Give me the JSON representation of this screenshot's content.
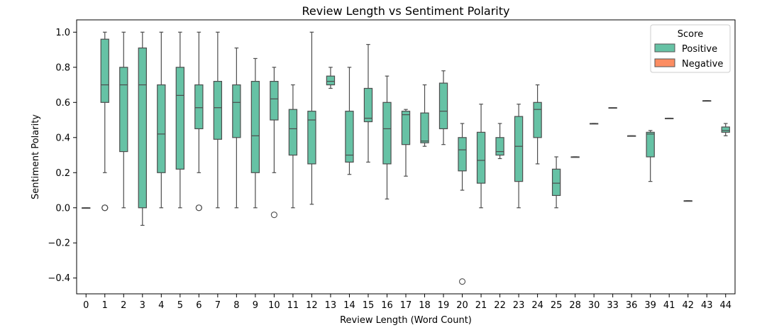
{
  "chart_data": {
    "type": "box",
    "title": "Review Length vs Sentiment Polarity",
    "xlabel": "Review Length (Word Count)",
    "ylabel": "Sentiment Polarity",
    "ylim": [
      -0.49,
      1.07
    ],
    "yticks": [
      "−0.4",
      "−0.2",
      "0.0",
      "0.2",
      "0.4",
      "0.6",
      "0.8",
      "1.0"
    ],
    "ytick_values": [
      -0.4,
      -0.2,
      0.0,
      0.2,
      0.4,
      0.6,
      0.8,
      1.0
    ],
    "grid": false,
    "legend": {
      "title": "Score",
      "position": "top-right",
      "entries": [
        {
          "name": "Positive",
          "color": "#66c2a5"
        },
        {
          "name": "Negative",
          "color": "#fc8d62"
        }
      ]
    },
    "categories": [
      "0",
      "1",
      "2",
      "3",
      "4",
      "5",
      "6",
      "7",
      "8",
      "9",
      "10",
      "11",
      "12",
      "13",
      "14",
      "15",
      "16",
      "17",
      "18",
      "19",
      "20",
      "21",
      "22",
      "23",
      "24",
      "25",
      "28",
      "30",
      "33",
      "36",
      "39",
      "41",
      "42",
      "43",
      "44"
    ],
    "series": [
      {
        "name": "Positive",
        "color": "#66c2a5",
        "boxes": [
          {
            "q1": 0.0,
            "median": 0.0,
            "q3": 0.0,
            "whislo": 0.0,
            "whishi": 0.0,
            "fliers": []
          },
          {
            "q1": 0.6,
            "median": 0.7,
            "q3": 0.96,
            "whislo": 0.2,
            "whishi": 1.0,
            "fliers": [
              0.0,
              0.0,
              0.0
            ]
          },
          {
            "q1": 0.32,
            "median": 0.7,
            "q3": 0.8,
            "whislo": 0.0,
            "whishi": 1.0,
            "fliers": []
          },
          {
            "q1": 0.0,
            "median": 0.7,
            "q3": 0.91,
            "whislo": -0.1,
            "whishi": 1.0,
            "fliers": []
          },
          {
            "q1": 0.2,
            "median": 0.42,
            "q3": 0.7,
            "whislo": 0.0,
            "whishi": 1.0,
            "fliers": []
          },
          {
            "q1": 0.22,
            "median": 0.64,
            "q3": 0.8,
            "whislo": 0.0,
            "whishi": 1.0,
            "fliers": []
          },
          {
            "q1": 0.45,
            "median": 0.57,
            "q3": 0.7,
            "whislo": 0.2,
            "whishi": 1.0,
            "fliers": [
              0.0,
              0.0
            ]
          },
          {
            "q1": 0.39,
            "median": 0.57,
            "q3": 0.72,
            "whislo": 0.0,
            "whishi": 1.0,
            "fliers": []
          },
          {
            "q1": 0.4,
            "median": 0.6,
            "q3": 0.7,
            "whislo": 0.0,
            "whishi": 0.91,
            "fliers": []
          },
          {
            "q1": 0.2,
            "median": 0.41,
            "q3": 0.72,
            "whislo": 0.0,
            "whishi": 0.85,
            "fliers": []
          },
          {
            "q1": 0.5,
            "median": 0.62,
            "q3": 0.72,
            "whislo": 0.2,
            "whishi": 0.8,
            "fliers": [
              -0.04
            ]
          },
          {
            "q1": 0.3,
            "median": 0.45,
            "q3": 0.56,
            "whislo": 0.0,
            "whishi": 0.7,
            "fliers": []
          },
          {
            "q1": 0.25,
            "median": 0.5,
            "q3": 0.55,
            "whislo": 0.02,
            "whishi": 1.0,
            "fliers": []
          },
          {
            "q1": 0.7,
            "median": 0.72,
            "q3": 0.75,
            "whislo": 0.68,
            "whishi": 0.8,
            "fliers": []
          },
          {
            "q1": 0.26,
            "median": 0.3,
            "q3": 0.55,
            "whislo": 0.19,
            "whishi": 0.8,
            "fliers": []
          },
          {
            "q1": 0.49,
            "median": 0.51,
            "q3": 0.68,
            "whislo": 0.26,
            "whishi": 0.93,
            "fliers": []
          },
          {
            "q1": 0.25,
            "median": 0.45,
            "q3": 0.6,
            "whislo": 0.05,
            "whishi": 0.75,
            "fliers": []
          },
          {
            "q1": 0.36,
            "median": 0.53,
            "q3": 0.55,
            "whislo": 0.18,
            "whishi": 0.56,
            "fliers": []
          },
          {
            "q1": 0.37,
            "median": 0.38,
            "q3": 0.54,
            "whislo": 0.35,
            "whishi": 0.7,
            "fliers": []
          },
          {
            "q1": 0.45,
            "median": 0.55,
            "q3": 0.71,
            "whislo": 0.36,
            "whishi": 0.78,
            "fliers": []
          },
          {
            "q1": 0.21,
            "median": 0.33,
            "q3": 0.4,
            "whislo": 0.1,
            "whishi": 0.48,
            "fliers": [
              -0.42
            ]
          },
          {
            "q1": 0.14,
            "median": 0.27,
            "q3": 0.43,
            "whislo": 0.0,
            "whishi": 0.59,
            "fliers": []
          },
          {
            "q1": 0.3,
            "median": 0.32,
            "q3": 0.4,
            "whislo": 0.28,
            "whishi": 0.48,
            "fliers": []
          },
          {
            "q1": 0.15,
            "median": 0.35,
            "q3": 0.52,
            "whislo": 0.0,
            "whishi": 0.59,
            "fliers": []
          },
          {
            "q1": 0.4,
            "median": 0.56,
            "q3": 0.6,
            "whislo": 0.25,
            "whishi": 0.7,
            "fliers": []
          },
          {
            "q1": 0.07,
            "median": 0.14,
            "q3": 0.22,
            "whislo": 0.0,
            "whishi": 0.29,
            "fliers": []
          },
          {
            "q1": 0.29,
            "median": 0.29,
            "q3": 0.29,
            "whislo": 0.29,
            "whishi": 0.29,
            "fliers": []
          },
          {
            "q1": 0.48,
            "median": 0.48,
            "q3": 0.48,
            "whislo": 0.48,
            "whishi": 0.48,
            "fliers": []
          },
          {
            "q1": 0.57,
            "median": 0.57,
            "q3": 0.57,
            "whislo": 0.57,
            "whishi": 0.57,
            "fliers": []
          },
          {
            "q1": 0.41,
            "median": 0.41,
            "q3": 0.41,
            "whislo": 0.41,
            "whishi": 0.41,
            "fliers": []
          },
          {
            "q1": 0.29,
            "median": 0.42,
            "q3": 0.43,
            "whislo": 0.15,
            "whishi": 0.44,
            "fliers": []
          },
          {
            "q1": 0.51,
            "median": 0.51,
            "q3": 0.51,
            "whislo": 0.51,
            "whishi": 0.51,
            "fliers": []
          },
          {
            "q1": 0.04,
            "median": 0.04,
            "q3": 0.04,
            "whislo": 0.04,
            "whishi": 0.04,
            "fliers": []
          },
          {
            "q1": 0.61,
            "median": 0.61,
            "q3": 0.61,
            "whislo": 0.61,
            "whishi": 0.61,
            "fliers": []
          },
          {
            "q1": 0.43,
            "median": 0.44,
            "q3": 0.46,
            "whislo": 0.41,
            "whishi": 0.48,
            "fliers": []
          }
        ]
      },
      {
        "name": "Negative",
        "color": "#fc8d62",
        "boxes": []
      }
    ]
  }
}
